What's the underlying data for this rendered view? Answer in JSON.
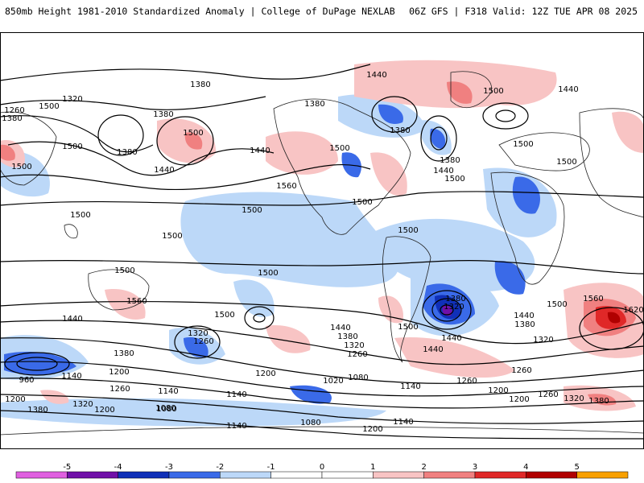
{
  "header": {
    "left_title": "850mb Height 1981-2010 Standardized Anomaly | College of DuPage NEXLAB",
    "right_title": "06Z GFS | F318 Valid: 12Z TUE APR 08 2025"
  },
  "map": {
    "contour_labels": [
      {
        "text": "1380"
      },
      {
        "text": "1440"
      },
      {
        "text": "1500"
      },
      {
        "text": "1260"
      },
      {
        "text": "1320"
      },
      {
        "text": "1380"
      },
      {
        "text": "1380"
      },
      {
        "text": "1500"
      },
      {
        "text": "1380"
      },
      {
        "text": "1500"
      },
      {
        "text": "1440"
      },
      {
        "text": "1500"
      },
      {
        "text": "1440"
      },
      {
        "text": "1380"
      },
      {
        "text": "1500"
      },
      {
        "text": "1380"
      },
      {
        "text": "1440"
      },
      {
        "text": "1500"
      },
      {
        "text": "1560"
      },
      {
        "text": "1380"
      },
      {
        "text": "1440"
      },
      {
        "text": "1500"
      },
      {
        "text": "1500"
      },
      {
        "text": "1500"
      },
      {
        "text": "1500"
      },
      {
        "text": "1500"
      },
      {
        "text": "1500"
      },
      {
        "text": "1500"
      },
      {
        "text": "1500"
      },
      {
        "text": "1500"
      },
      {
        "text": "1500"
      },
      {
        "text": "1560"
      },
      {
        "text": "1620"
      },
      {
        "text": "1560"
      },
      {
        "text": "1500"
      },
      {
        "text": "1440"
      },
      {
        "text": "1380"
      },
      {
        "text": "1320"
      },
      {
        "text": "1260"
      },
      {
        "text": "1200"
      },
      {
        "text": "1140"
      },
      {
        "text": "960"
      },
      {
        "text": "1440"
      },
      {
        "text": "1380"
      },
      {
        "text": "1320"
      },
      {
        "text": "1260"
      },
      {
        "text": "1200"
      },
      {
        "text": "1140"
      },
      {
        "text": "1080"
      },
      {
        "text": "1320"
      },
      {
        "text": "1260"
      },
      {
        "text": "1500"
      },
      {
        "text": "1440"
      },
      {
        "text": "1380"
      },
      {
        "text": "1320"
      },
      {
        "text": "1260"
      },
      {
        "text": "1200"
      },
      {
        "text": "1140"
      },
      {
        "text": "1080"
      },
      {
        "text": "1020"
      },
      {
        "text": "1080"
      },
      {
        "text": "1140"
      },
      {
        "text": "1200"
      },
      {
        "text": "1440"
      },
      {
        "text": "1380"
      },
      {
        "text": "1320"
      },
      {
        "text": "1260"
      },
      {
        "text": "1200"
      },
      {
        "text": "1260"
      },
      {
        "text": "1320"
      },
      {
        "text": "1380"
      },
      {
        "text": "1500"
      },
      {
        "text": "1440"
      },
      {
        "text": "1140"
      },
      {
        "text": "1200"
      },
      {
        "text": "1080"
      },
      {
        "text": "1200"
      },
      {
        "text": "1380"
      },
      {
        "text": "1140"
      }
    ],
    "colors": {
      "neg5": "#e060e0",
      "neg4": "#7010a8",
      "neg3": "#1030b8",
      "neg2": "#3a6ae8",
      "neg1": "#bcd8f8",
      "zero": "#ffffff",
      "pos1": "#f8c4c4",
      "pos2": "#f08080",
      "pos3": "#e02828",
      "pos4": "#b00000",
      "pos5": "#f8a000"
    }
  },
  "colorbar": {
    "ticks": [
      "-5",
      "-4",
      "-3",
      "-2",
      "-1",
      "0",
      "1",
      "2",
      "3",
      "4",
      "5"
    ]
  }
}
